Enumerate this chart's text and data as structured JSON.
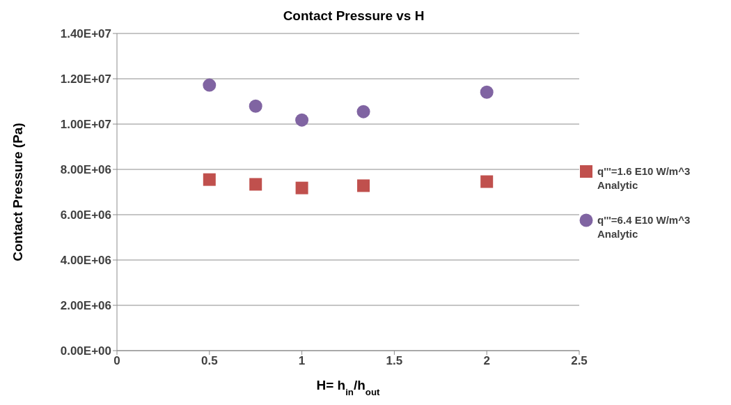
{
  "chart_data": {
    "type": "scatter",
    "title": "Contact Pressure vs H",
    "xlabel": "H= h$_{in}$/h$_{out}$",
    "ylabel": "Contact Pressure (Pa)",
    "xlim": [
      0,
      2.5
    ],
    "xticks": [
      0,
      0.5,
      1,
      1.5,
      2,
      2.5
    ],
    "ylim": [
      0,
      14000000
    ],
    "yticks": [
      {
        "value": 0,
        "label": "0.00E+00"
      },
      {
        "value": 2000000,
        "label": "2.00E+06"
      },
      {
        "value": 4000000,
        "label": "4.00E+06"
      },
      {
        "value": 6000000,
        "label": "6.00E+06"
      },
      {
        "value": 8000000,
        "label": "8.00E+06"
      },
      {
        "value": 10000000,
        "label": "1.00E+07"
      },
      {
        "value": 12000000,
        "label": "1.20E+07"
      },
      {
        "value": 14000000,
        "label": "1.40E+07"
      }
    ],
    "grid": "y",
    "legend": "right",
    "series": [
      {
        "name": "q'''=1.6 E10 W/m^3 Analytic",
        "color": "#c0504d",
        "marker": "square",
        "x": [
          0.5,
          0.75,
          1,
          1.333,
          2
        ],
        "values": [
          7550000,
          7340000,
          7180000,
          7280000,
          7460000
        ]
      },
      {
        "name": "q'''=6.4 E10 W/m^3 Analytic",
        "color": "#8064a2",
        "marker": "circle",
        "x": [
          0.5,
          0.75,
          1,
          1.333,
          2
        ],
        "values": [
          11720000,
          10790000,
          10180000,
          10550000,
          11410000
        ]
      }
    ]
  }
}
